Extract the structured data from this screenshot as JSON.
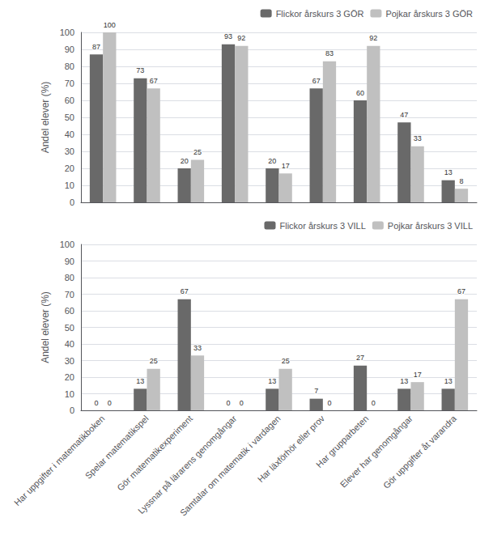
{
  "chart_data": [
    {
      "type": "bar",
      "categories": [
        "Har uppgifter i matematikboken",
        "Spelar matematikspel",
        "Gör matematikexperiment",
        "Lyssnar på lärarens genomgångar",
        "Samtalar om matematik i vardagen",
        "Har läxförhör eller prov",
        "Har grupparbeten",
        "Elever har genomgångar",
        "Gör uppgifter åt varandra"
      ],
      "series": [
        {
          "name": "Flickor årskurs 3 GÖR",
          "color": "#696969",
          "values": [
            87,
            73,
            20,
            93,
            20,
            67,
            60,
            47,
            13
          ]
        },
        {
          "name": "Pojkar årskurs 3 GÖR",
          "color": "#c0c0c0",
          "values": [
            100,
            67,
            25,
            92,
            17,
            83,
            92,
            33,
            8
          ]
        }
      ],
      "ylabel": "Andel elever (%)",
      "ylim": [
        0,
        100
      ],
      "yticks": [
        0,
        10,
        20,
        30,
        40,
        50,
        60,
        70,
        80,
        90,
        100
      ],
      "grid": true,
      "legend": "upper right",
      "data_labels": true,
      "tick_labels": "y"
    },
    {
      "type": "bar",
      "categories": [
        "Har uppgifter i matematikboken",
        "Spelar matematikspel",
        "Gör matematikexperiment",
        "Lyssnar på lärarens genomgångar",
        "Samtalar om matematik i vardagen",
        "Har läxförhör eller prov",
        "Har grupparbeten",
        "Elever har genomgångar",
        "Gör uppgifter åt varandra"
      ],
      "series": [
        {
          "name": "Flickor årskurs 3 VILL",
          "color": "#696969",
          "values": [
            0,
            13,
            67,
            0,
            13,
            7,
            27,
            13,
            13
          ]
        },
        {
          "name": "Pojkar årskurs 3 VILL",
          "color": "#c0c0c0",
          "values": [
            0,
            25,
            33,
            0,
            25,
            0,
            0,
            17,
            67
          ]
        }
      ],
      "ylabel": "Andel elever (%)",
      "ylim": [
        0,
        100
      ],
      "yticks": [
        0,
        10,
        20,
        30,
        40,
        50,
        60,
        70,
        80,
        90,
        100
      ],
      "grid": true,
      "legend": "upper right",
      "data_labels": true
    }
  ]
}
